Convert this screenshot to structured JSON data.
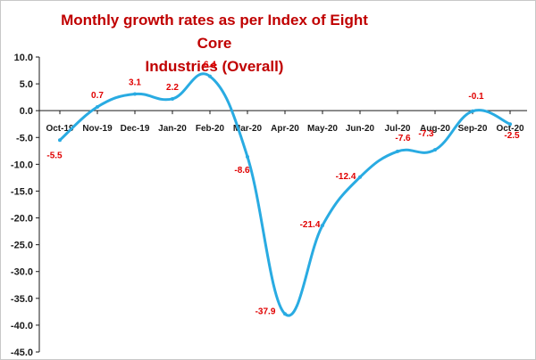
{
  "chart_data": {
    "type": "line",
    "title_line1": "Monthly growth rates as per Index of Eight Core",
    "title_line2": "Industries (Overall)",
    "categories": [
      "Oct-19",
      "Nov-19",
      "Dec-19",
      "Jan-20",
      "Feb-20",
      "Mar-20",
      "Apr-20",
      "May-20",
      "Jun-20",
      "Jul-20",
      "Aug-20",
      "Sep-20",
      "Oct-20"
    ],
    "values": [
      -5.5,
      0.7,
      3.1,
      2.2,
      6.4,
      -8.6,
      -37.9,
      -21.4,
      -12.4,
      -7.6,
      -7.3,
      -0.1,
      -2.5
    ],
    "value_labels": [
      "-5.5",
      "0.7",
      "3.1",
      "2.2",
      "6.4",
      "-8.6",
      "-37.9",
      "-21.4",
      "-12.4",
      "-7.6",
      "-7.3",
      "-0.1",
      "-2.5"
    ],
    "ylim": [
      -45,
      10
    ],
    "y_ticks": [
      "10.0",
      "5.0",
      "0.0",
      "-5.0",
      "-10.0",
      "-15.0",
      "-20.0",
      "-25.0",
      "-30.0",
      "-35.0",
      "-40.0",
      "-45.0"
    ],
    "xlabel": "",
    "ylabel": "",
    "grid": false,
    "legend": "none",
    "colors": {
      "line": "#29abe2",
      "title": "#c00000",
      "data_labels": "#e00000",
      "axis": "#1a1a1a"
    }
  }
}
